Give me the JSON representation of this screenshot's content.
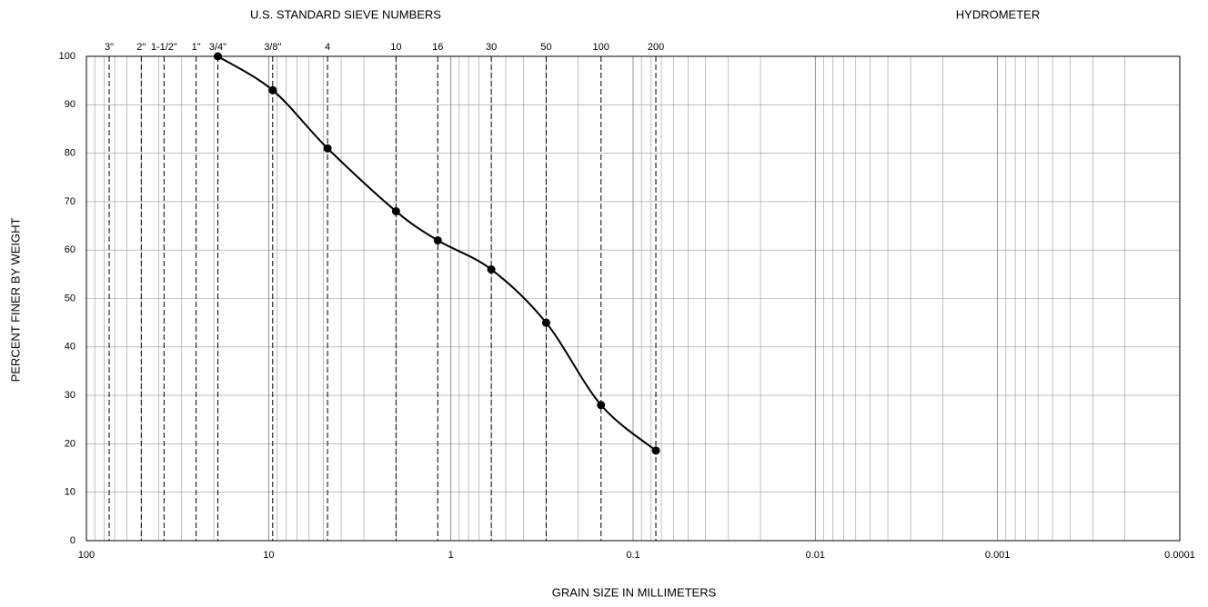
{
  "chart_data": {
    "type": "line",
    "header_left": "U.S. STANDARD SIEVE NUMBERS",
    "header_right": "HYDROMETER",
    "xlabel": "GRAIN SIZE IN MILLIMETERS",
    "ylabel": "PERCENT FINER BY WEIGHT",
    "xscale": "log",
    "xlim": [
      100,
      0.0001
    ],
    "xticks": [
      100,
      10,
      1,
      0.1,
      0.01,
      0.001,
      0.0001
    ],
    "ylim": [
      0,
      100
    ],
    "yticks": [
      0,
      10,
      20,
      30,
      40,
      50,
      60,
      70,
      80,
      90,
      100
    ],
    "x2ticks": [
      {
        "value": 75,
        "label": "3\""
      },
      {
        "value": 50,
        "label": "2\""
      },
      {
        "value": 37.5,
        "label": "1-1/2\""
      },
      {
        "value": 25,
        "label": "1\""
      },
      {
        "value": 19,
        "label": "3/4\""
      },
      {
        "value": 9.5,
        "label": "3/8\""
      },
      {
        "value": 4.75,
        "label": "4"
      },
      {
        "value": 2.0,
        "label": "10"
      },
      {
        "value": 1.18,
        "label": "16"
      },
      {
        "value": 0.6,
        "label": "30"
      },
      {
        "value": 0.3,
        "label": "50"
      },
      {
        "value": 0.15,
        "label": "100"
      },
      {
        "value": 0.075,
        "label": "200"
      }
    ],
    "grid": true,
    "color": "#000000",
    "x": [
      19,
      9.5,
      4.75,
      2.0,
      1.18,
      0.6,
      0.3,
      0.15,
      0.075
    ],
    "values": [
      100,
      93,
      81,
      68,
      62,
      56,
      45,
      28,
      18.6
    ]
  }
}
